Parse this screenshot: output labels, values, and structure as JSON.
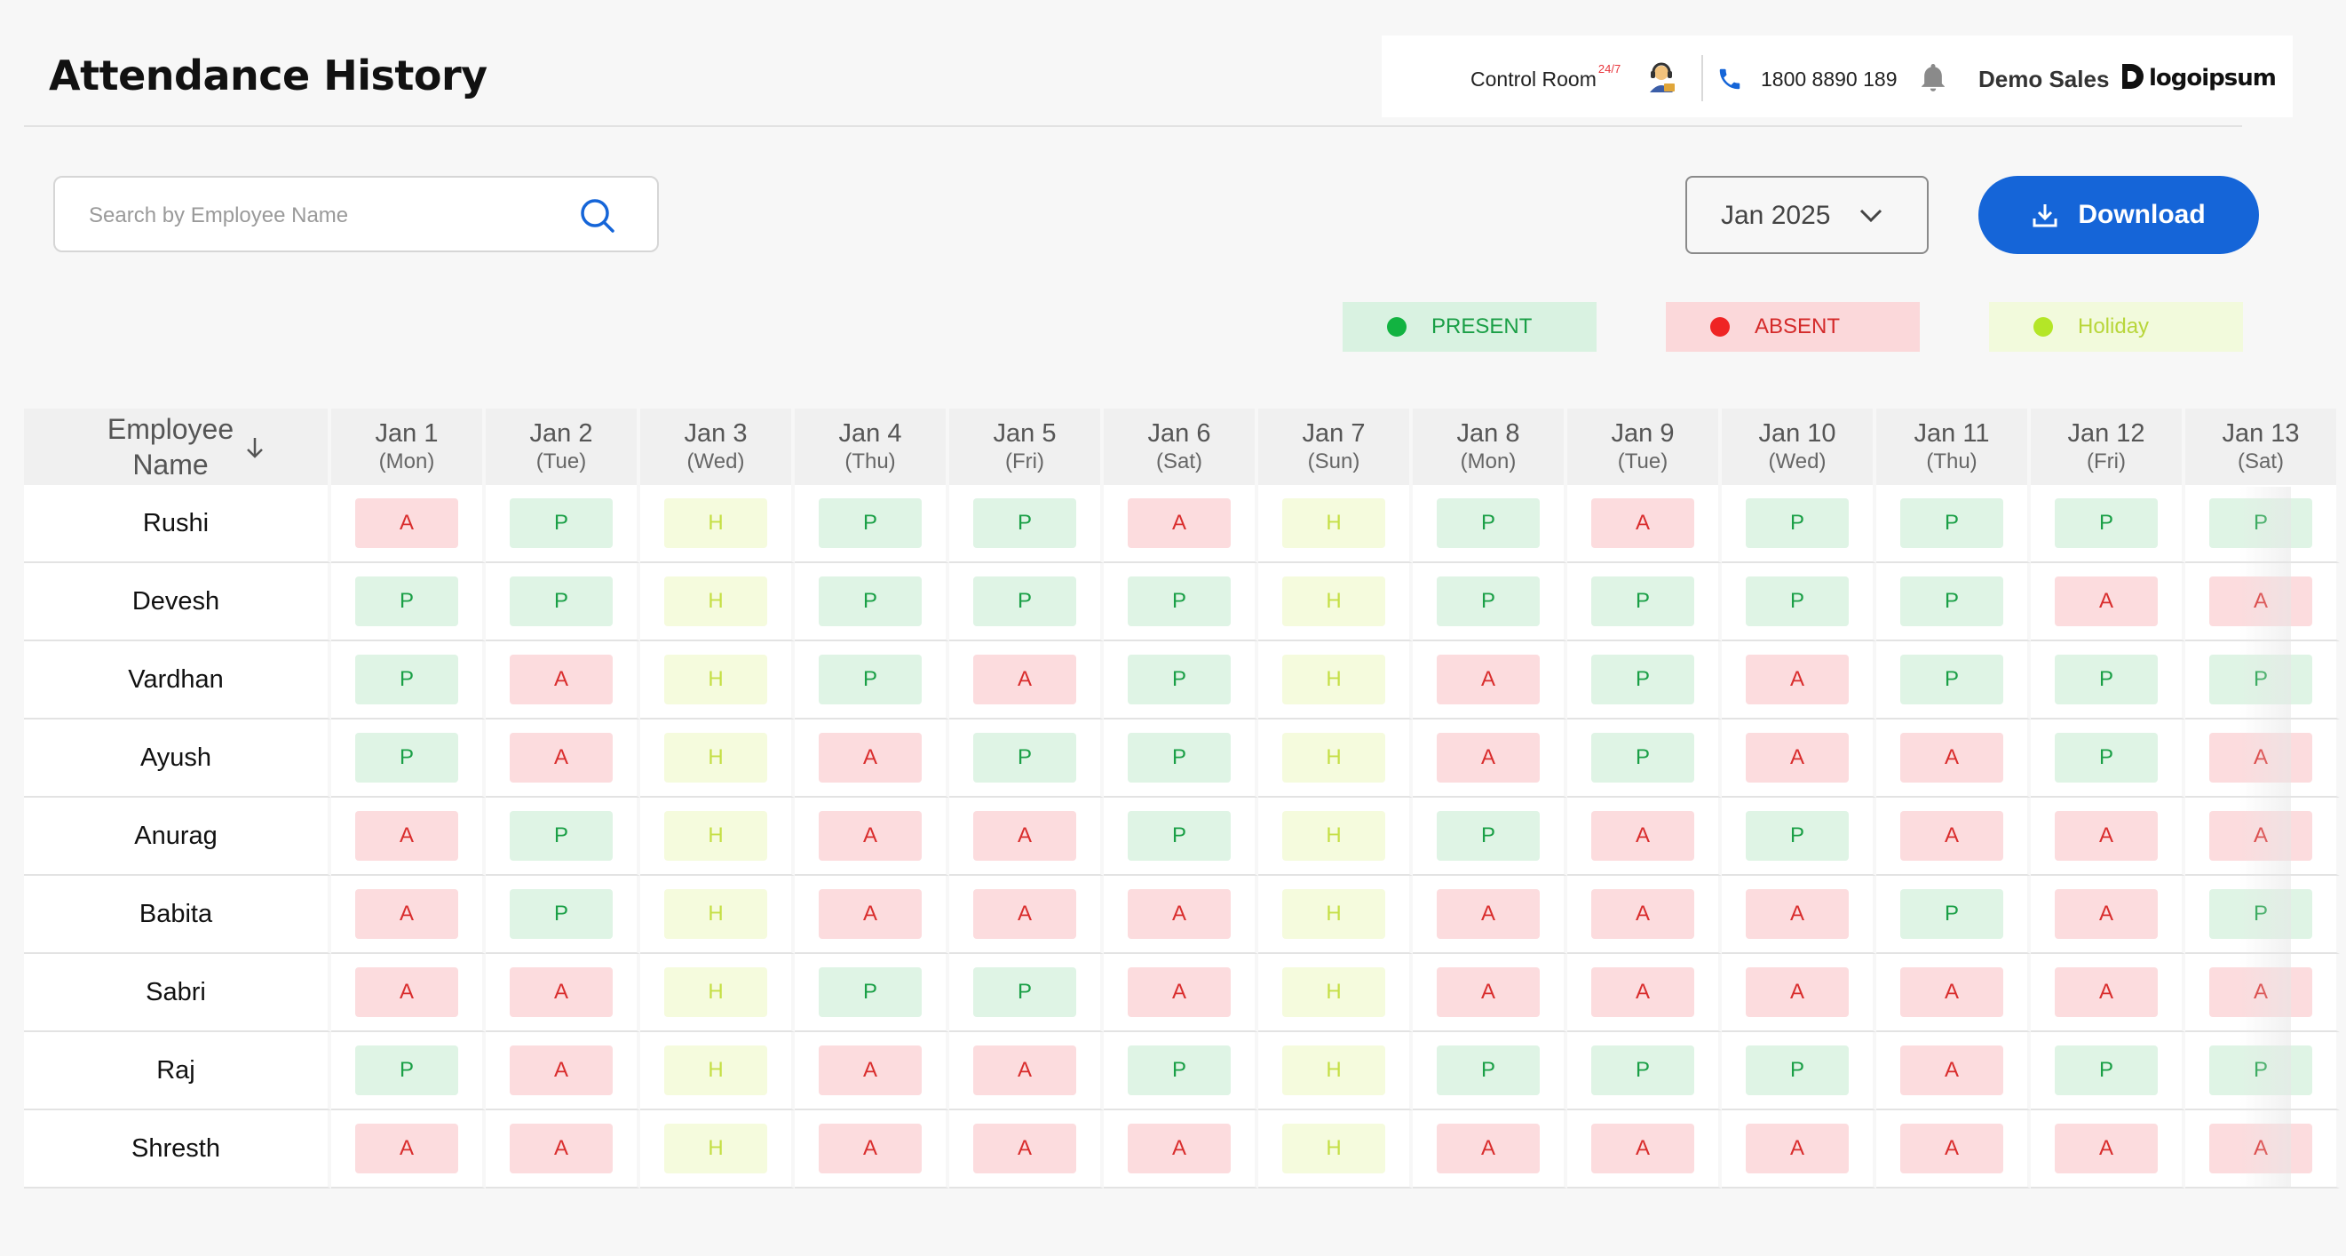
{
  "page_title": "Attendance History",
  "topbar": {
    "control_room_label": "Control Room",
    "control_room_sup": "24/7",
    "phone": "1800 8890 189",
    "user_name": "Demo Sales",
    "logo_text": "logoipsum"
  },
  "search": {
    "placeholder": "Search by Employee Name",
    "value": ""
  },
  "month_select": {
    "value": "Jan 2025"
  },
  "download_label": "Download",
  "legend": {
    "present": "PRESENT",
    "absent": "ABSENT",
    "holiday": "Holiday"
  },
  "colors": {
    "accent": "#1565d8",
    "present": "#12b341",
    "absent": "#ef2424",
    "holiday": "#b4e627"
  },
  "table": {
    "employee_header": "Employee Name",
    "days": [
      {
        "date": "Jan 1",
        "dow": "(Mon)"
      },
      {
        "date": "Jan 2",
        "dow": "(Tue)"
      },
      {
        "date": "Jan 3",
        "dow": "(Wed)"
      },
      {
        "date": "Jan 4",
        "dow": "(Thu)"
      },
      {
        "date": "Jan 5",
        "dow": "(Fri)"
      },
      {
        "date": "Jan 6",
        "dow": "(Sat)"
      },
      {
        "date": "Jan 7",
        "dow": "(Sun)"
      },
      {
        "date": "Jan 8",
        "dow": "(Mon)"
      },
      {
        "date": "Jan 9",
        "dow": "(Tue)"
      },
      {
        "date": "Jan 10",
        "dow": "(Wed)"
      },
      {
        "date": "Jan 11",
        "dow": "(Thu)"
      },
      {
        "date": "Jan 12",
        "dow": "(Fri)"
      },
      {
        "date": "Jan 13",
        "dow": "(Sat)"
      }
    ],
    "rows": [
      {
        "name": "Rushi",
        "status": [
          "A",
          "P",
          "H",
          "P",
          "P",
          "A",
          "H",
          "P",
          "A",
          "P",
          "P",
          "P",
          "P"
        ]
      },
      {
        "name": "Devesh",
        "status": [
          "P",
          "P",
          "H",
          "P",
          "P",
          "P",
          "H",
          "P",
          "P",
          "P",
          "P",
          "A",
          "A"
        ]
      },
      {
        "name": "Vardhan",
        "status": [
          "P",
          "A",
          "H",
          "P",
          "A",
          "P",
          "H",
          "A",
          "P",
          "A",
          "P",
          "P",
          "P"
        ]
      },
      {
        "name": "Ayush",
        "status": [
          "P",
          "A",
          "H",
          "A",
          "P",
          "P",
          "H",
          "A",
          "P",
          "A",
          "A",
          "P",
          "A"
        ]
      },
      {
        "name": "Anurag",
        "status": [
          "A",
          "P",
          "H",
          "A",
          "A",
          "P",
          "H",
          "P",
          "A",
          "P",
          "A",
          "A",
          "A"
        ]
      },
      {
        "name": "Babita",
        "status": [
          "A",
          "P",
          "H",
          "A",
          "A",
          "A",
          "H",
          "A",
          "A",
          "A",
          "P",
          "A",
          "P"
        ]
      },
      {
        "name": "Sabri",
        "status": [
          "A",
          "A",
          "H",
          "P",
          "P",
          "A",
          "H",
          "A",
          "A",
          "A",
          "A",
          "A",
          "A"
        ]
      },
      {
        "name": "Raj",
        "status": [
          "P",
          "A",
          "H",
          "A",
          "A",
          "P",
          "H",
          "P",
          "P",
          "P",
          "A",
          "P",
          "P"
        ]
      },
      {
        "name": "Shresth",
        "status": [
          "A",
          "A",
          "H",
          "A",
          "A",
          "A",
          "H",
          "A",
          "A",
          "A",
          "A",
          "A",
          "A"
        ]
      }
    ]
  }
}
